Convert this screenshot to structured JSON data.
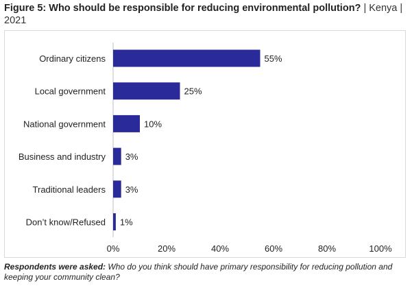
{
  "title": {
    "bold": "Figure 5: Who should be responsible for reducing environmental pollution?",
    "rest": " | Kenya | 2021"
  },
  "footnote": {
    "lead": "Respondents were asked:",
    "text": " Who do you think should have primary responsibility for reducing pollution and keeping your community clean?"
  },
  "colors": {
    "bar": "#2a2a9a",
    "text": "#222222",
    "axis": "#bfbfbf"
  },
  "chart_data": {
    "type": "bar",
    "orientation": "horizontal",
    "categories": [
      "Ordinary citizens",
      "Local government",
      "National government",
      "Business and industry",
      "Traditional leaders",
      "Don’t know/Refused"
    ],
    "values": [
      55,
      25,
      10,
      3,
      3,
      1
    ],
    "value_labels": [
      "55%",
      "25%",
      "10%",
      "3%",
      "3%",
      "1%"
    ],
    "xlim": [
      0,
      100
    ],
    "xticks": [
      0,
      20,
      40,
      60,
      80,
      100
    ],
    "xtick_labels": [
      "0%",
      "20%",
      "40%",
      "60%",
      "80%",
      "100%"
    ],
    "grid": false,
    "legend": "none"
  }
}
